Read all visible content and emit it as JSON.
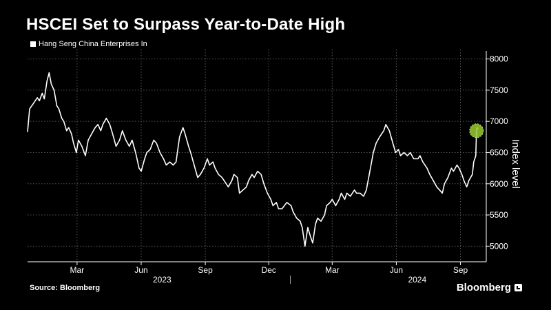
{
  "header": {
    "title": "HSCEI Set to Surpass Year-to-Date High",
    "legend_label": "Hang Seng China Enterprises In"
  },
  "footer": {
    "source": "Source: Bloomberg",
    "brand": "Bloomberg"
  },
  "colors": {
    "background": "#000000",
    "line": "#ffffff",
    "grid": "#5a5a5a",
    "highlight": "#9acd32"
  },
  "chart_data": {
    "type": "line",
    "title": "HSCEI Set to Surpass Year-to-Date High",
    "ylabel": "Index level",
    "xlabel": "",
    "ylim": [
      4750,
      8150
    ],
    "xlim": [
      "2022-12-20",
      "2024-10-08"
    ],
    "y_ticks": [
      5000,
      5500,
      6000,
      6500,
      7000,
      7500,
      8000
    ],
    "x_ticks": [
      {
        "date": "2023-03-01",
        "label": "Mar"
      },
      {
        "date": "2023-06-01",
        "label": "Jun"
      },
      {
        "date": "2023-09-01",
        "label": "Sep"
      },
      {
        "date": "2023-12-01",
        "label": "Dec"
      },
      {
        "date": "2024-03-01",
        "label": "Mar"
      },
      {
        "date": "2024-06-01",
        "label": "Jun"
      },
      {
        "date": "2024-09-01",
        "label": "Sep"
      }
    ],
    "year_labels": [
      {
        "date": "2023-07-01",
        "label": "2023"
      },
      {
        "date": "2024-07-01",
        "label": "2024"
      }
    ],
    "year_divider": "2024-01-01",
    "grid": true,
    "legend_position": "top-left",
    "highlight_point": {
      "x": "2024-09-24",
      "y": 6850
    },
    "series": [
      {
        "name": "Hang Seng China Enterprises In",
        "points": [
          [
            "2022-12-20",
            6830
          ],
          [
            "2022-12-23",
            7200
          ],
          [
            "2022-12-28",
            7280
          ],
          [
            "2023-01-03",
            7380
          ],
          [
            "2023-01-06",
            7330
          ],
          [
            "2023-01-10",
            7450
          ],
          [
            "2023-01-13",
            7360
          ],
          [
            "2023-01-17",
            7650
          ],
          [
            "2023-01-20",
            7780
          ],
          [
            "2023-01-23",
            7600
          ],
          [
            "2023-01-27",
            7500
          ],
          [
            "2023-01-31",
            7250
          ],
          [
            "2023-02-03",
            7200
          ],
          [
            "2023-02-07",
            7050
          ],
          [
            "2023-02-10",
            7000
          ],
          [
            "2023-02-14",
            6850
          ],
          [
            "2023-02-17",
            6900
          ],
          [
            "2023-02-21",
            6800
          ],
          [
            "2023-02-24",
            6650
          ],
          [
            "2023-02-28",
            6500
          ],
          [
            "2023-03-03",
            6700
          ],
          [
            "2023-03-08",
            6600
          ],
          [
            "2023-03-13",
            6450
          ],
          [
            "2023-03-17",
            6700
          ],
          [
            "2023-03-22",
            6800
          ],
          [
            "2023-03-27",
            6900
          ],
          [
            "2023-03-31",
            6950
          ],
          [
            "2023-04-04",
            6850
          ],
          [
            "2023-04-07",
            6950
          ],
          [
            "2023-04-12",
            7050
          ],
          [
            "2023-04-17",
            6950
          ],
          [
            "2023-04-21",
            6800
          ],
          [
            "2023-04-26",
            6600
          ],
          [
            "2023-05-01",
            6700
          ],
          [
            "2023-05-05",
            6850
          ],
          [
            "2023-05-10",
            6700
          ],
          [
            "2023-05-15",
            6600
          ],
          [
            "2023-05-19",
            6700
          ],
          [
            "2023-05-24",
            6500
          ],
          [
            "2023-05-29",
            6250
          ],
          [
            "2023-06-01",
            6200
          ],
          [
            "2023-06-06",
            6400
          ],
          [
            "2023-06-09",
            6500
          ],
          [
            "2023-06-14",
            6550
          ],
          [
            "2023-06-19",
            6700
          ],
          [
            "2023-06-23",
            6650
          ],
          [
            "2023-06-28",
            6500
          ],
          [
            "2023-07-03",
            6400
          ],
          [
            "2023-07-07",
            6300
          ],
          [
            "2023-07-12",
            6350
          ],
          [
            "2023-07-17",
            6300
          ],
          [
            "2023-07-21",
            6350
          ],
          [
            "2023-07-26",
            6750
          ],
          [
            "2023-07-31",
            6900
          ],
          [
            "2023-08-03",
            6800
          ],
          [
            "2023-08-08",
            6600
          ],
          [
            "2023-08-11",
            6500
          ],
          [
            "2023-08-16",
            6300
          ],
          [
            "2023-08-21",
            6100
          ],
          [
            "2023-08-25",
            6150
          ],
          [
            "2023-08-30",
            6250
          ],
          [
            "2023-09-04",
            6400
          ],
          [
            "2023-09-07",
            6300
          ],
          [
            "2023-09-12",
            6350
          ],
          [
            "2023-09-15",
            6250
          ],
          [
            "2023-09-20",
            6150
          ],
          [
            "2023-09-25",
            6100
          ],
          [
            "2023-09-28",
            6050
          ],
          [
            "2023-10-04",
            5950
          ],
          [
            "2023-10-09",
            6050
          ],
          [
            "2023-10-12",
            6150
          ],
          [
            "2023-10-17",
            6100
          ],
          [
            "2023-10-20",
            5850
          ],
          [
            "2023-10-25",
            5900
          ],
          [
            "2023-10-30",
            5950
          ],
          [
            "2023-11-02",
            6050
          ],
          [
            "2023-11-07",
            6150
          ],
          [
            "2023-11-10",
            6100
          ],
          [
            "2023-11-15",
            6200
          ],
          [
            "2023-11-20",
            6150
          ],
          [
            "2023-11-24",
            6000
          ],
          [
            "2023-11-29",
            5850
          ],
          [
            "2023-12-04",
            5750
          ],
          [
            "2023-12-07",
            5650
          ],
          [
            "2023-12-12",
            5700
          ],
          [
            "2023-12-15",
            5600
          ],
          [
            "2023-12-20",
            5600
          ],
          [
            "2023-12-27",
            5700
          ],
          [
            "2024-01-02",
            5650
          ],
          [
            "2024-01-05",
            5550
          ],
          [
            "2024-01-10",
            5450
          ],
          [
            "2024-01-15",
            5400
          ],
          [
            "2024-01-18",
            5300
          ],
          [
            "2024-01-22",
            5000
          ],
          [
            "2024-01-26",
            5300
          ],
          [
            "2024-01-30",
            5150
          ],
          [
            "2024-02-02",
            5050
          ],
          [
            "2024-02-06",
            5350
          ],
          [
            "2024-02-09",
            5450
          ],
          [
            "2024-02-14",
            5400
          ],
          [
            "2024-02-19",
            5500
          ],
          [
            "2024-02-22",
            5650
          ],
          [
            "2024-02-27",
            5700
          ],
          [
            "2024-03-01",
            5750
          ],
          [
            "2024-03-06",
            5650
          ],
          [
            "2024-03-11",
            5750
          ],
          [
            "2024-03-14",
            5850
          ],
          [
            "2024-03-19",
            5750
          ],
          [
            "2024-03-22",
            5850
          ],
          [
            "2024-03-27",
            5800
          ],
          [
            "2024-04-02",
            5900
          ],
          [
            "2024-04-05",
            5850
          ],
          [
            "2024-04-10",
            5850
          ],
          [
            "2024-04-15",
            5800
          ],
          [
            "2024-04-19",
            5900
          ],
          [
            "2024-04-24",
            6200
          ],
          [
            "2024-04-29",
            6500
          ],
          [
            "2024-05-03",
            6650
          ],
          [
            "2024-05-08",
            6750
          ],
          [
            "2024-05-14",
            6850
          ],
          [
            "2024-05-17",
            6950
          ],
          [
            "2024-05-22",
            6850
          ],
          [
            "2024-05-27",
            6650
          ],
          [
            "2024-05-31",
            6500
          ],
          [
            "2024-06-04",
            6550
          ],
          [
            "2024-06-07",
            6450
          ],
          [
            "2024-06-12",
            6500
          ],
          [
            "2024-06-17",
            6450
          ],
          [
            "2024-06-21",
            6500
          ],
          [
            "2024-06-26",
            6400
          ],
          [
            "2024-07-02",
            6400
          ],
          [
            "2024-07-05",
            6450
          ],
          [
            "2024-07-09",
            6350
          ],
          [
            "2024-07-15",
            6250
          ],
          [
            "2024-07-19",
            6150
          ],
          [
            "2024-07-24",
            6050
          ],
          [
            "2024-07-29",
            5950
          ],
          [
            "2024-08-02",
            5900
          ],
          [
            "2024-08-06",
            5850
          ],
          [
            "2024-08-09",
            6000
          ],
          [
            "2024-08-14",
            6100
          ],
          [
            "2024-08-19",
            6250
          ],
          [
            "2024-08-22",
            6200
          ],
          [
            "2024-08-27",
            6300
          ],
          [
            "2024-08-30",
            6250
          ],
          [
            "2024-09-03",
            6150
          ],
          [
            "2024-09-06",
            6050
          ],
          [
            "2024-09-10",
            5950
          ],
          [
            "2024-09-13",
            6050
          ],
          [
            "2024-09-18",
            6150
          ],
          [
            "2024-09-20",
            6350
          ],
          [
            "2024-09-23",
            6450
          ],
          [
            "2024-09-24",
            6850
          ],
          [
            "2024-09-25",
            6900
          ],
          [
            "2024-09-26",
            6880
          ]
        ]
      }
    ]
  }
}
